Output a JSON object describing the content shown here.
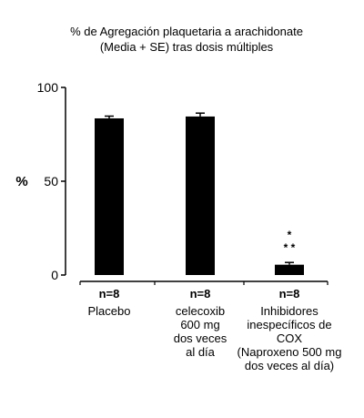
{
  "chart_data": {
    "type": "bar",
    "title": [
      "% de Agregación plaquetaria a arachidonate",
      "(Media + SE) tras dosis múltiples"
    ],
    "ylabel": "%",
    "ylim": [
      0,
      100
    ],
    "yticks": [
      0,
      50,
      100
    ],
    "grid": false,
    "categories": [
      {
        "n_label": "n=8",
        "lines": [
          "Placebo"
        ]
      },
      {
        "n_label": "n=8",
        "lines": [
          "celecoxib",
          "600 mg",
          "dos veces",
          "al día"
        ]
      },
      {
        "n_label": "n=8",
        "lines": [
          "Inhibidores",
          "inespecíficos de",
          "COX",
          "(Naproxeno 500 mg",
          "dos veces al día)"
        ]
      }
    ],
    "values": [
      83.5,
      84.5,
      5.5
    ],
    "errors": [
      1.2,
      1.8,
      1.2
    ],
    "annotations": [
      "",
      "",
      "*\n* *"
    ],
    "bar_color": "#000000",
    "axis_color": "#000000"
  }
}
